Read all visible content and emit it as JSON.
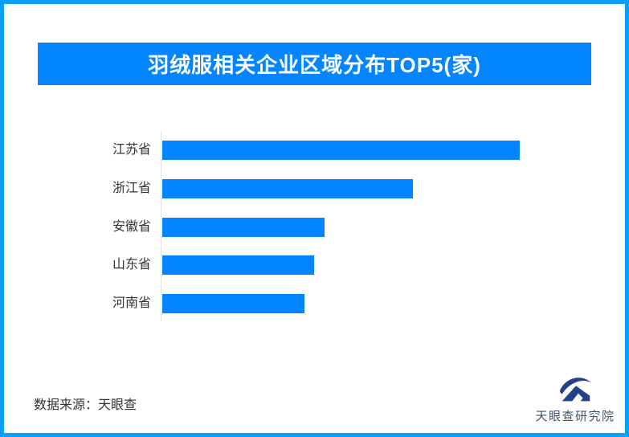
{
  "page": {
    "border_color": "#0aa0f9",
    "background_color": "#ffffff"
  },
  "banner": {
    "title": "羽绒服相关企业区域分布TOP5(家)",
    "background_color": "#0385ff",
    "text_color": "#ffffff"
  },
  "chart_data": {
    "type": "bar",
    "orientation": "horizontal",
    "title": "羽绒服相关企业区域分布TOP5(家)",
    "categories": [
      "江苏省",
      "浙江省",
      "安徽省",
      "山东省",
      "河南省"
    ],
    "values_relative_pct": [
      100,
      70.1,
      45.4,
      42.5,
      39.8
    ],
    "value_labels_visible": false,
    "axis_tick_labels_visible": false,
    "xlabel": "",
    "ylabel": "",
    "grid": false,
    "legend": false,
    "bar_color": "#0385ff",
    "axis_line_color": "#e3e3e3",
    "label_color": "#333333"
  },
  "footer": {
    "source_text": "数据来源：天眼查",
    "logo_text": "天眼查研究院",
    "logo_color": "#24418c",
    "logo_text_color": "#44536b"
  }
}
